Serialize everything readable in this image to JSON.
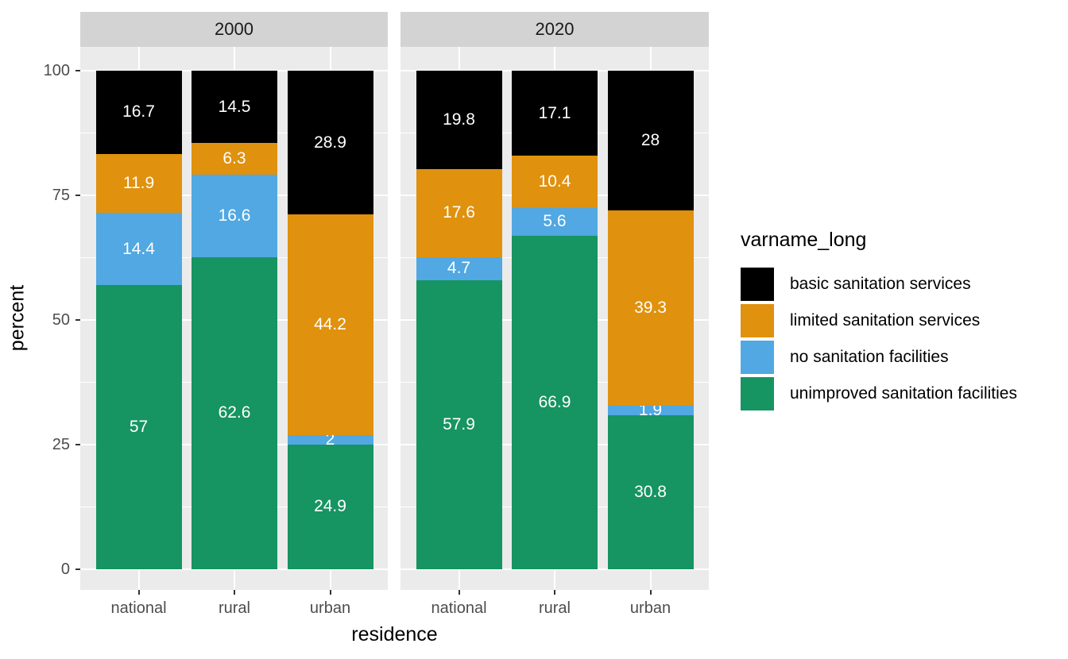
{
  "chart_data": {
    "type": "bar",
    "stacked": true,
    "orientation": "vertical",
    "xlabel": "residence",
    "ylabel": "percent",
    "ylim": [
      0,
      100
    ],
    "y_ticks": [
      "0",
      "25",
      "50",
      "75",
      "100"
    ],
    "y_tick_values": [
      0,
      25,
      50,
      75,
      100
    ],
    "y_minor_values": [
      12.5,
      37.5,
      62.5,
      87.5
    ],
    "grid": true,
    "categories": [
      "national",
      "rural",
      "urban"
    ],
    "facets": [
      {
        "label": "2000",
        "series": [
          {
            "name": "unimproved sanitation facilities",
            "color": "#169461",
            "values": [
              57,
              62.6,
              24.9
            ],
            "labels": [
              "57",
              "62.6",
              "24.9"
            ]
          },
          {
            "name": "no sanitation facilities",
            "color": "#51a8e2",
            "values": [
              14.4,
              16.6,
              2
            ],
            "labels": [
              "14.4",
              "16.6",
              "2"
            ]
          },
          {
            "name": "limited sanitation services",
            "color": "#e0910d",
            "values": [
              11.9,
              6.3,
              44.2
            ],
            "labels": [
              "11.9",
              "6.3",
              "44.2"
            ]
          },
          {
            "name": "basic sanitation services",
            "color": "#000000",
            "values": [
              16.7,
              14.5,
              28.9
            ],
            "labels": [
              "16.7",
              "14.5",
              "28.9"
            ]
          }
        ]
      },
      {
        "label": "2020",
        "series": [
          {
            "name": "unimproved sanitation facilities",
            "color": "#169461",
            "values": [
              57.9,
              66.9,
              30.8
            ],
            "labels": [
              "57.9",
              "66.9",
              "30.8"
            ]
          },
          {
            "name": "no sanitation facilities",
            "color": "#51a8e2",
            "values": [
              4.7,
              5.6,
              1.9
            ],
            "labels": [
              "4.7",
              "5.6",
              "1.9"
            ]
          },
          {
            "name": "limited sanitation services",
            "color": "#e0910d",
            "values": [
              17.6,
              10.4,
              39.3
            ],
            "labels": [
              "17.6",
              "10.4",
              "39.3"
            ]
          },
          {
            "name": "basic sanitation services",
            "color": "#000000",
            "values": [
              19.8,
              17.1,
              28
            ],
            "labels": [
              "19.8",
              "17.1",
              "28"
            ]
          }
        ]
      }
    ],
    "legend": {
      "title": "varname_long",
      "position": "right",
      "items": [
        {
          "label": "basic sanitation services",
          "color": "#000000"
        },
        {
          "label": "limited sanitation services",
          "color": "#e0910d"
        },
        {
          "label": "no sanitation facilities",
          "color": "#51a8e2"
        },
        {
          "label": "unimproved sanitation facilities",
          "color": "#169461"
        }
      ]
    },
    "theme": {
      "panel_bg": "#ebebeb",
      "strip_bg": "#d3d3d3",
      "grid_color": "#ffffff",
      "tick_text_color": "#4d4d4d",
      "bar_label_color": "#ffffff"
    }
  }
}
